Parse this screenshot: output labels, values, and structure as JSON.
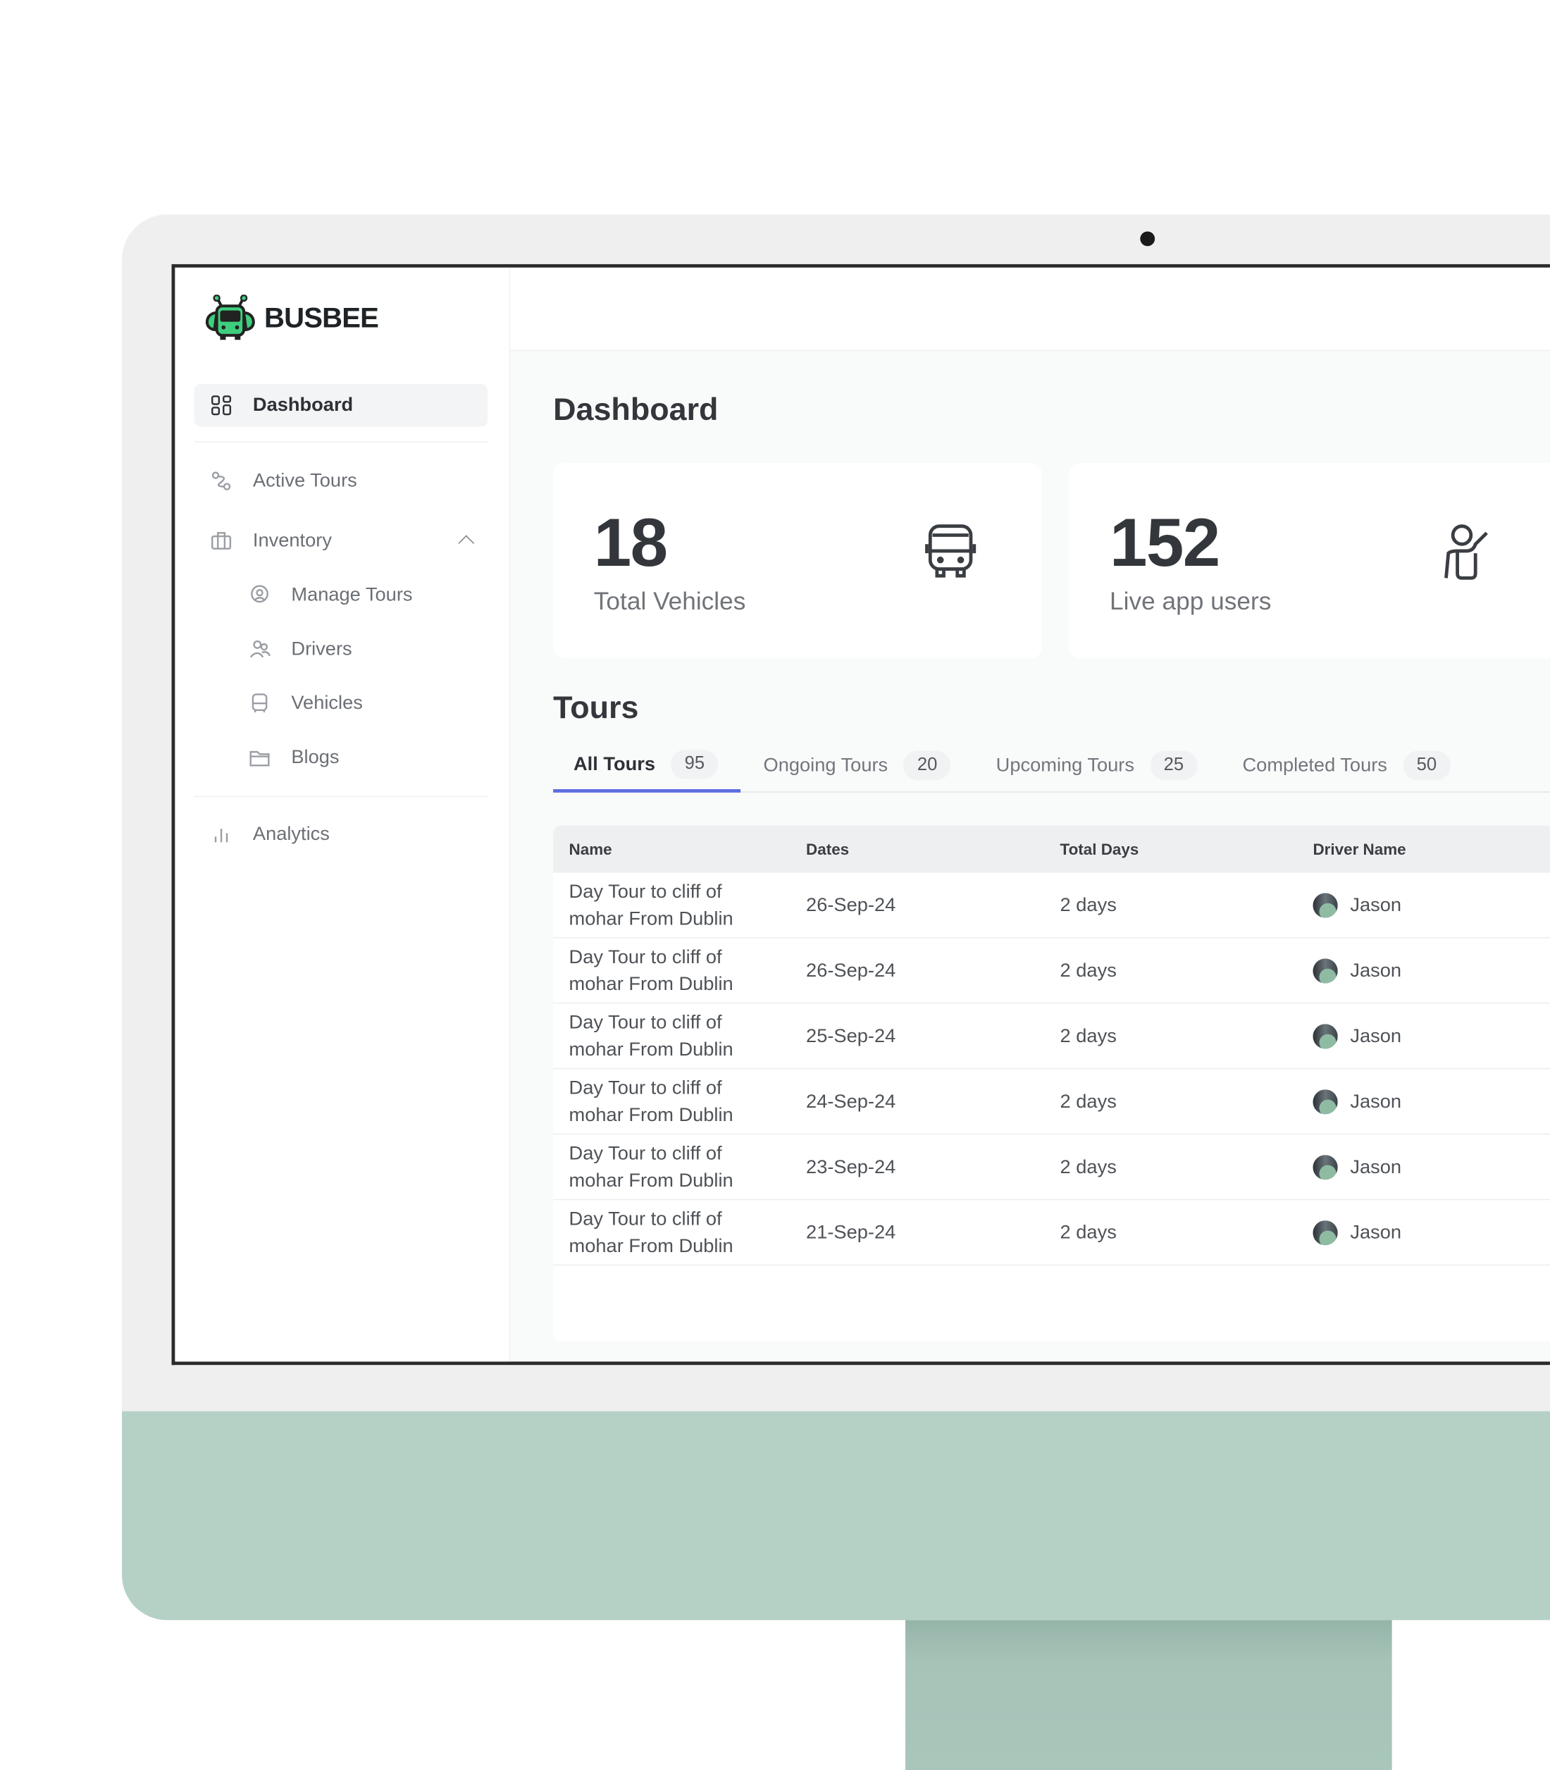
{
  "app": {
    "brand": "BUSBEE",
    "brand_color": "#3ecf7e"
  },
  "sidebar": {
    "items": [
      {
        "label": "Dashboard",
        "icon": "grid-icon",
        "active": true
      },
      {
        "label": "Active Tours",
        "icon": "route-icon"
      },
      {
        "label": "Inventory",
        "icon": "briefcase-icon",
        "expanded": true
      },
      {
        "label": "Manage Tours",
        "icon": "map-pin-icon"
      },
      {
        "label": "Drivers",
        "icon": "users-icon"
      },
      {
        "label": "Vehicles",
        "icon": "bus-icon"
      },
      {
        "label": "Blogs",
        "icon": "folder-icon"
      },
      {
        "label": "Analytics",
        "icon": "bar-chart-icon"
      }
    ]
  },
  "main": {
    "title": "Dashboard",
    "cards": [
      {
        "value": "18",
        "label": "Total Vehicles",
        "icon": "bus-icon"
      },
      {
        "value": "152",
        "label": "Live app users",
        "icon": "waving-user-icon"
      }
    ],
    "tours_title": "Tours",
    "tabs": [
      {
        "label": "All Tours",
        "count": "95",
        "active": true
      },
      {
        "label": "Ongoing Tours",
        "count": "20"
      },
      {
        "label": "Upcoming Tours",
        "count": "25"
      },
      {
        "label": "Completed Tours",
        "count": "50"
      }
    ],
    "table": {
      "columns": [
        "Name",
        "Dates",
        "Total Days",
        "Driver Name"
      ],
      "rows": [
        {
          "name": [
            "Day Tour to cliff of",
            "mohar From Dublin"
          ],
          "date": "26-Sep-24",
          "days": "2 days",
          "driver": "Jason"
        },
        {
          "name": [
            "Day Tour to cliff of",
            "mohar From Dublin"
          ],
          "date": "26-Sep-24",
          "days": "2 days",
          "driver": "Jason"
        },
        {
          "name": [
            "Day Tour to cliff of",
            "mohar From Dublin"
          ],
          "date": "25-Sep-24",
          "days": "2 days",
          "driver": "Jason"
        },
        {
          "name": [
            "Day Tour to cliff of",
            "mohar From Dublin"
          ],
          "date": "24-Sep-24",
          "days": "2 days",
          "driver": "Jason"
        },
        {
          "name": [
            "Day Tour to cliff of",
            "mohar From Dublin"
          ],
          "date": "23-Sep-24",
          "days": "2 days",
          "driver": "Jason"
        },
        {
          "name": [
            "Day Tour to cliff of",
            "mohar From Dublin"
          ],
          "date": "21-Sep-24",
          "days": "2 days",
          "driver": "Jason"
        }
      ]
    },
    "accent": "#5b6ee1"
  }
}
